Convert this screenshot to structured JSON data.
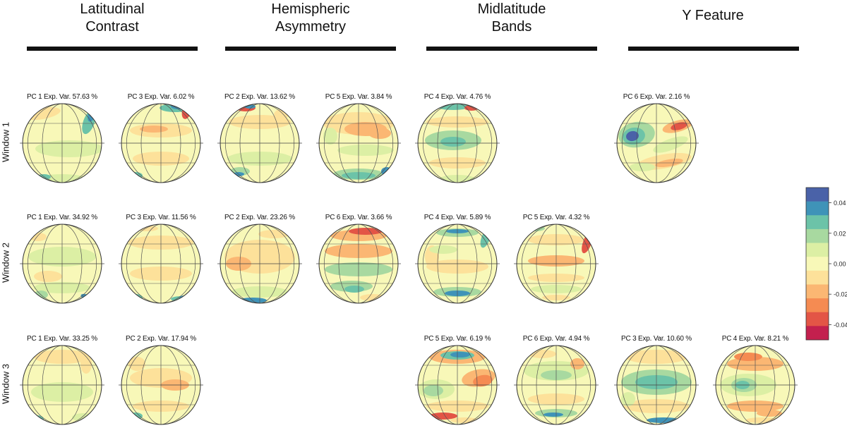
{
  "categories": [
    {
      "title_line1": "Latitudinal",
      "title_line2": "Contrast"
    },
    {
      "title_line1": "Hemispheric",
      "title_line2": "Asymmetry"
    },
    {
      "title_line1": "Midlatitude",
      "title_line2": "Bands"
    },
    {
      "title_line1": "Y Feature",
      "title_line2": ""
    }
  ],
  "rows": [
    "Window 1",
    "Window 2",
    "Window 3"
  ],
  "panels": [
    {
      "row": 0,
      "col": 0,
      "label": "PC 1 Exp. Var. 57.63 %",
      "pattern": "w1pc1"
    },
    {
      "row": 0,
      "col": 1,
      "label": "PC 3 Exp. Var. 6.02 %",
      "pattern": "w1pc3"
    },
    {
      "row": 0,
      "col": 2,
      "label": "PC 2 Exp. Var. 13.62 %",
      "pattern": "w1pc2"
    },
    {
      "row": 0,
      "col": 3,
      "label": "PC 5 Exp. Var. 3.84 %",
      "pattern": "w1pc5"
    },
    {
      "row": 0,
      "col": 4,
      "label": "PC 4 Exp. Var. 4.76 %",
      "pattern": "w1pc4"
    },
    {
      "row": 0,
      "col": 6,
      "label": "PC 6 Exp. Var. 2.16 %",
      "pattern": "w1pc6"
    },
    {
      "row": 1,
      "col": 0,
      "label": "PC 1 Exp. Var. 34.92 %",
      "pattern": "w2pc1"
    },
    {
      "row": 1,
      "col": 1,
      "label": "PC 3 Exp. Var. 11.56 %",
      "pattern": "w2pc3"
    },
    {
      "row": 1,
      "col": 2,
      "label": "PC 2 Exp. Var. 23.26 %",
      "pattern": "w2pc2"
    },
    {
      "row": 1,
      "col": 3,
      "label": "PC 6 Exp. Var. 3.66 %",
      "pattern": "w2pc6"
    },
    {
      "row": 1,
      "col": 4,
      "label": "PC 4 Exp. Var. 5.89 %",
      "pattern": "w2pc4"
    },
    {
      "row": 1,
      "col": 5,
      "label": "PC 5 Exp. Var. 4.32 %",
      "pattern": "w2pc5"
    },
    {
      "row": 2,
      "col": 0,
      "label": "PC 1 Exp. Var. 33.25 %",
      "pattern": "w3pc1"
    },
    {
      "row": 2,
      "col": 1,
      "label": "PC 2 Exp. Var. 17.94 %",
      "pattern": "w3pc2"
    },
    {
      "row": 2,
      "col": 4,
      "label": "PC 5 Exp. Var. 6.19 %",
      "pattern": "w3pc5"
    },
    {
      "row": 2,
      "col": 5,
      "label": "PC 6 Exp. Var. 4.94 %",
      "pattern": "w3pc6"
    },
    {
      "row": 2,
      "col": 6,
      "label": "PC 3 Exp. Var. 10.60 %",
      "pattern": "w3pc3"
    },
    {
      "row": 2,
      "col": 7,
      "label": "PC 4 Exp. Var. 8.21 %",
      "pattern": "w3pc4"
    }
  ],
  "colorbar": {
    "ticks": [
      "0.04",
      "0.02",
      "0.00",
      "-0.02",
      "-0.04"
    ],
    "colors": [
      "#4a62a8",
      "#3f93b8",
      "#6cc3a8",
      "#a8d9a0",
      "#dcefa4",
      "#f8f8b8",
      "#fde19a",
      "#fbb773",
      "#f58b52",
      "#e35546",
      "#c3204e"
    ]
  }
}
